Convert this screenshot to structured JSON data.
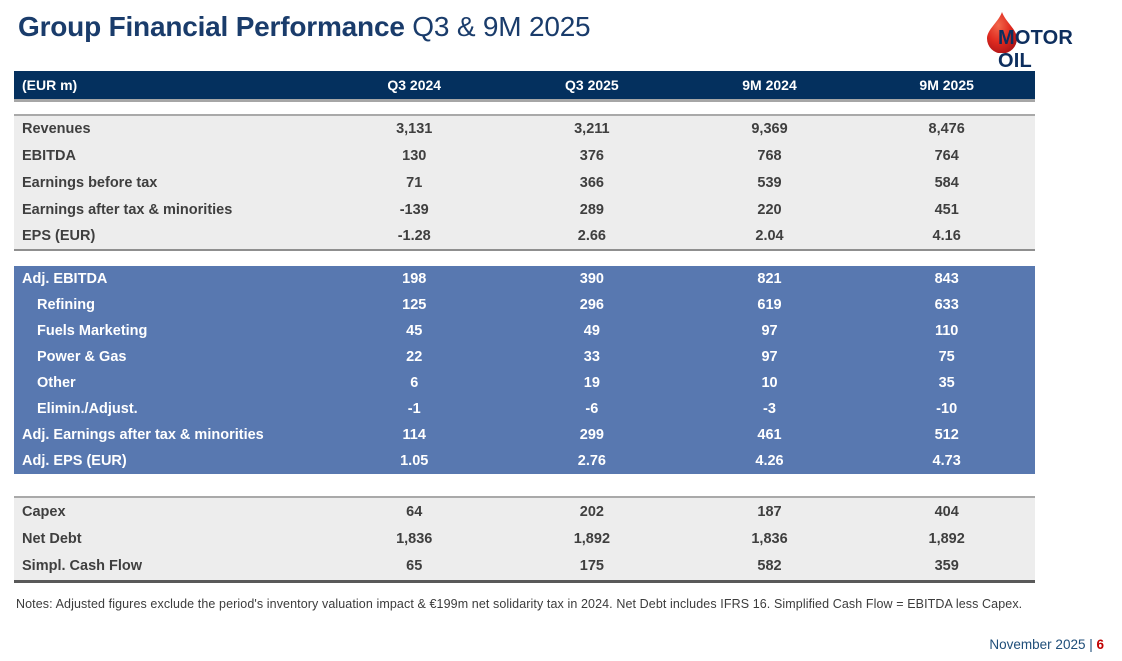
{
  "title": {
    "main": "Group Financial Performance",
    "period": " Q3 & 9M 2025"
  },
  "logo": {
    "text": "MOTOR OIL",
    "drop_color": "#d6231f",
    "text_color": "#0d2e5e"
  },
  "table": {
    "unit_label": "(EUR m)",
    "columns": [
      "Q3 2024",
      "Q3 2025",
      "9M 2024",
      "9M 2025"
    ],
    "sections": [
      {
        "style": "gray",
        "rows": [
          {
            "label": "Revenues",
            "indent": false,
            "values": [
              "3,131",
              "3,211",
              "9,369",
              "8,476"
            ]
          },
          {
            "label": "EBITDA",
            "indent": false,
            "values": [
              "130",
              "376",
              "768",
              "764"
            ]
          },
          {
            "label": "Earnings before tax",
            "indent": false,
            "values": [
              "71",
              "366",
              "539",
              "584"
            ]
          },
          {
            "label": "Earnings after tax & minorities",
            "indent": false,
            "values": [
              "-139",
              "289",
              "220",
              "451"
            ]
          },
          {
            "label": "EPS (EUR)",
            "indent": false,
            "values": [
              "-1.28",
              "2.66",
              "2.04",
              "4.16"
            ]
          }
        ]
      },
      {
        "style": "blue",
        "rows": [
          {
            "label": "Adj. EBITDA",
            "indent": false,
            "values": [
              "198",
              "390",
              "821",
              "843"
            ]
          },
          {
            "label": "Refining",
            "indent": true,
            "values": [
              "125",
              "296",
              "619",
              "633"
            ]
          },
          {
            "label": "Fuels Marketing",
            "indent": true,
            "values": [
              "45",
              "49",
              "97",
              "110"
            ]
          },
          {
            "label": "Power & Gas",
            "indent": true,
            "values": [
              "22",
              "33",
              "97",
              "75"
            ]
          },
          {
            "label": "Other",
            "indent": true,
            "values": [
              "6",
              "19",
              "10",
              "35"
            ]
          },
          {
            "label": "Elimin./Adjust.",
            "indent": true,
            "values": [
              "-1",
              "-6",
              "-3",
              "-10"
            ]
          },
          {
            "label": "Adj. Earnings after tax & minorities",
            "indent": false,
            "values": [
              "114",
              "299",
              "461",
              "512"
            ]
          },
          {
            "label": "Adj. EPS (EUR)",
            "indent": false,
            "values": [
              "1.05",
              "2.76",
              "4.26",
              "4.73"
            ]
          }
        ]
      },
      {
        "style": "gray",
        "rows": [
          {
            "label": "Capex",
            "indent": false,
            "values": [
              "64",
              "202",
              "187",
              "404"
            ]
          },
          {
            "label": "Net Debt",
            "indent": false,
            "values": [
              "1,836",
              "1,892",
              "1,836",
              "1,892"
            ]
          },
          {
            "label": "Simpl. Cash Flow",
            "indent": false,
            "values": [
              "65",
              "175",
              "582",
              "359"
            ]
          }
        ]
      }
    ]
  },
  "notes": "Notes: Adjusted figures exclude the period's inventory valuation impact & €199m net solidarity tax in 2024. Net Debt includes IFRS 16. Simplified Cash Flow = EBITDA less Capex.",
  "footer": {
    "date": "November 2025",
    "separator": " | ",
    "page": "6"
  },
  "colors": {
    "header_navy": "#04305e",
    "blue_section": "#5878b0",
    "gray_section": "#ededed",
    "title_navy": "#1a3c6b",
    "footer_navy": "#1f4e79",
    "accent_red": "#c00000",
    "logo_red": "#d6231f"
  }
}
